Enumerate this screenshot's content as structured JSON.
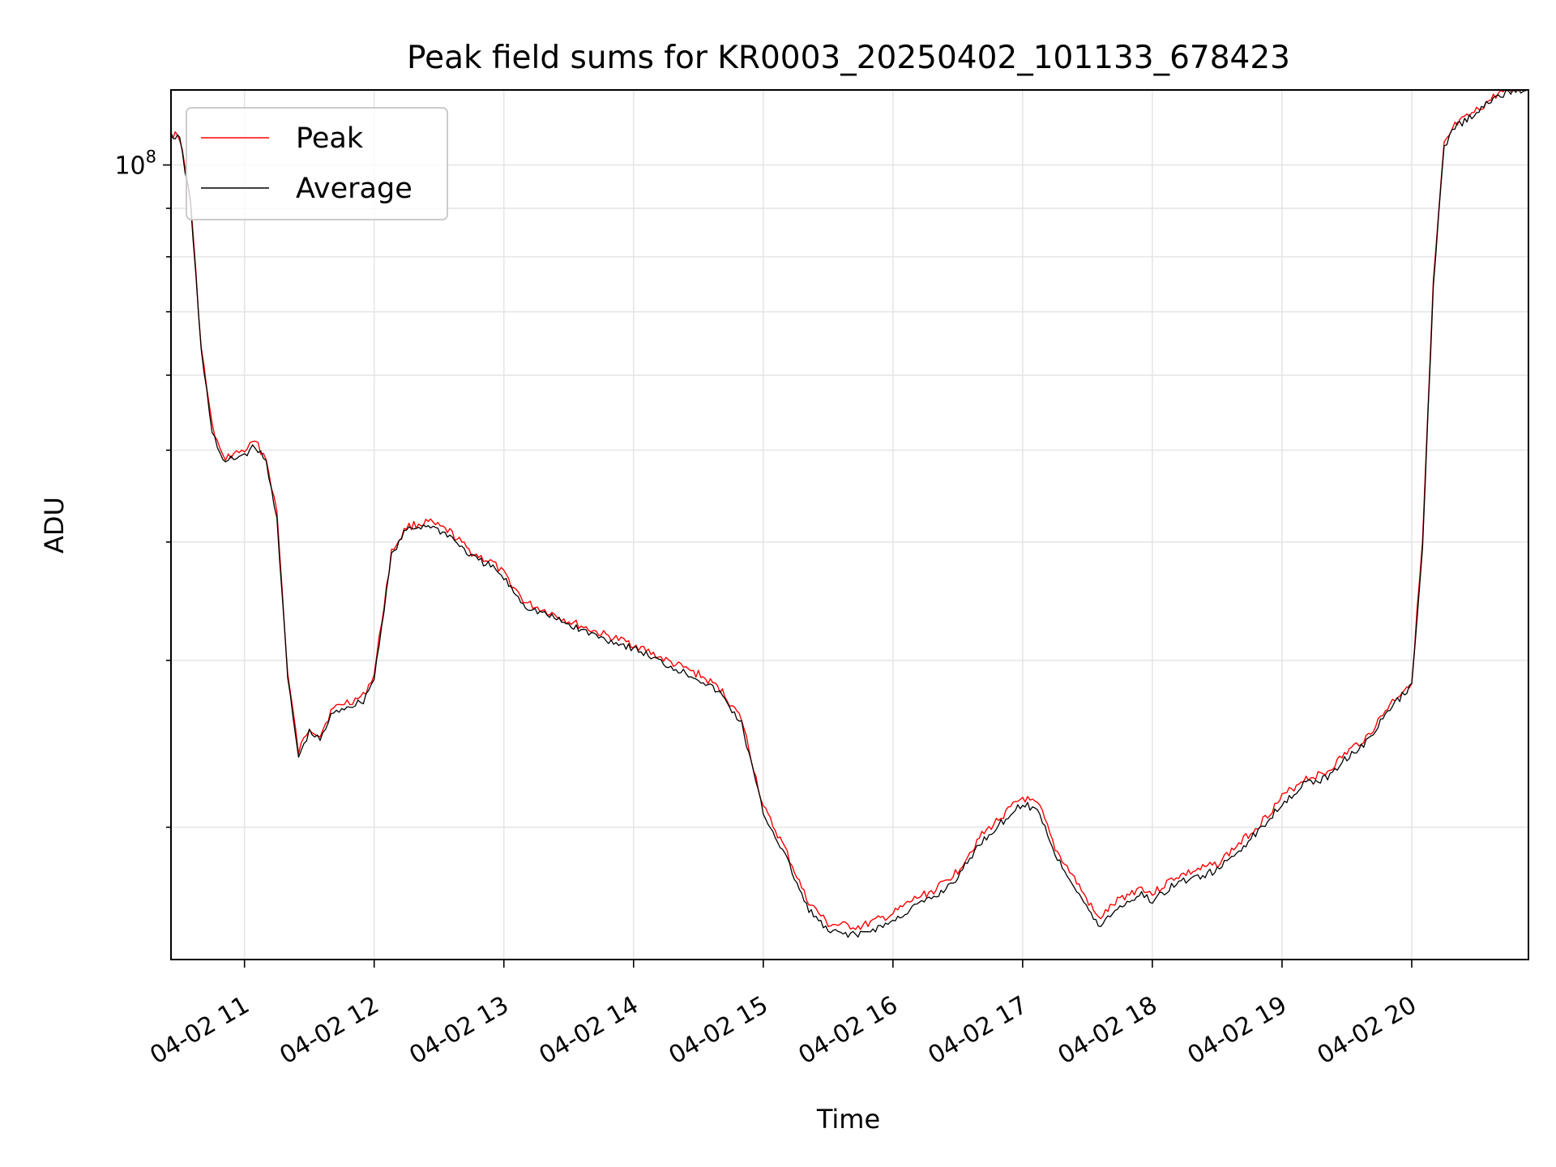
{
  "chart_data": {
    "type": "line",
    "title": "Peak field sums for KR0003_20250402_101133_678423",
    "xlabel": "Time",
    "ylabel": "ADU",
    "yscale": "log",
    "grid": true,
    "legend_position": "upper-left",
    "xlim": [
      "2025-04-02T10:26",
      "2025-04-02T20:54"
    ],
    "ylim": [
      14500000,
      120000000
    ],
    "x_ticks": [
      {
        "t": "2025-04-02T11:00",
        "label": "04-02 11"
      },
      {
        "t": "2025-04-02T12:00",
        "label": "04-02 12"
      },
      {
        "t": "2025-04-02T13:00",
        "label": "04-02 13"
      },
      {
        "t": "2025-04-02T14:00",
        "label": "04-02 14"
      },
      {
        "t": "2025-04-02T15:00",
        "label": "04-02 15"
      },
      {
        "t": "2025-04-02T16:00",
        "label": "04-02 16"
      },
      {
        "t": "2025-04-02T17:00",
        "label": "04-02 17"
      },
      {
        "t": "2025-04-02T18:00",
        "label": "04-02 18"
      },
      {
        "t": "2025-04-02T19:00",
        "label": "04-02 19"
      },
      {
        "t": "2025-04-02T20:00",
        "label": "04-02 20"
      }
    ],
    "y_major_tick": {
      "value": 100000000,
      "label_base": "10",
      "label_exp": "8"
    },
    "y_minor_ticks": [
      20000000,
      30000000,
      40000000,
      50000000,
      60000000,
      70000000,
      80000000,
      90000000
    ],
    "series": [
      {
        "name": "Peak",
        "color": "#ff0000",
        "x": [
          "2025-04-02T10:26",
          "2025-04-02T10:30",
          "2025-04-02T10:35",
          "2025-04-02T10:40",
          "2025-04-02T10:45",
          "2025-04-02T10:50",
          "2025-04-02T10:55",
          "2025-04-02T11:00",
          "2025-04-02T11:05",
          "2025-04-02T11:10",
          "2025-04-02T11:15",
          "2025-04-02T11:20",
          "2025-04-02T11:25",
          "2025-04-02T11:30",
          "2025-04-02T11:35",
          "2025-04-02T11:40",
          "2025-04-02T11:45",
          "2025-04-02T11:50",
          "2025-04-02T11:55",
          "2025-04-02T12:00",
          "2025-04-02T12:08",
          "2025-04-02T12:15",
          "2025-04-02T12:25",
          "2025-04-02T12:35",
          "2025-04-02T12:45",
          "2025-04-02T12:55",
          "2025-04-02T13:00",
          "2025-04-02T13:10",
          "2025-04-02T13:20",
          "2025-04-02T13:30",
          "2025-04-02T13:45",
          "2025-04-02T14:00",
          "2025-04-02T14:15",
          "2025-04-02T14:30",
          "2025-04-02T14:40",
          "2025-04-02T14:50",
          "2025-04-02T15:00",
          "2025-04-02T15:10",
          "2025-04-02T15:20",
          "2025-04-02T15:30",
          "2025-04-02T15:45",
          "2025-04-02T16:00",
          "2025-04-02T16:10",
          "2025-04-02T16:20",
          "2025-04-02T16:30",
          "2025-04-02T16:40",
          "2025-04-02T16:50",
          "2025-04-02T17:00",
          "2025-04-02T17:08",
          "2025-04-02T17:15",
          "2025-04-02T17:25",
          "2025-04-02T17:35",
          "2025-04-02T17:45",
          "2025-04-02T17:55",
          "2025-04-02T18:00",
          "2025-04-02T18:10",
          "2025-04-02T18:20",
          "2025-04-02T18:30",
          "2025-04-02T18:40",
          "2025-04-02T18:50",
          "2025-04-02T19:00",
          "2025-04-02T19:10",
          "2025-04-02T19:20",
          "2025-04-02T19:30",
          "2025-04-02T19:40",
          "2025-04-02T19:50",
          "2025-04-02T20:00",
          "2025-04-02T20:05",
          "2025-04-02T20:10",
          "2025-04-02T20:15",
          "2025-04-02T20:20",
          "2025-04-02T20:30",
          "2025-04-02T20:40",
          "2025-04-02T20:54"
        ],
        "values": [
          108000000,
          107000000,
          92000000,
          64000000,
          53000000,
          49000000,
          49500000,
          50000000,
          51000000,
          49000000,
          43000000,
          29000000,
          24000000,
          25500000,
          25000000,
          26500000,
          27000000,
          27200000,
          27500000,
          29000000,
          39000000,
          41500000,
          42000000,
          41000000,
          39000000,
          38000000,
          37000000,
          34500000,
          33800000,
          33000000,
          32000000,
          31200000,
          30000000,
          29000000,
          28000000,
          26000000,
          21000000,
          19000000,
          16800000,
          15800000,
          15700000,
          16200000,
          16800000,
          17200000,
          18000000,
          19500000,
          20500000,
          21500000,
          21000000,
          19000000,
          17500000,
          16000000,
          16800000,
          17300000,
          17000000,
          17700000,
          18000000,
          18300000,
          19200000,
          20200000,
          21500000,
          22500000,
          22800000,
          24000000,
          25000000,
          27000000,
          28500000,
          40000000,
          75000000,
          105000000,
          110000000,
          114000000,
          119000000,
          121000000
        ]
      },
      {
        "name": "Average",
        "color": "#000000",
        "x": [
          "2025-04-02T10:26",
          "2025-04-02T10:30",
          "2025-04-02T10:35",
          "2025-04-02T10:40",
          "2025-04-02T10:45",
          "2025-04-02T10:50",
          "2025-04-02T10:55",
          "2025-04-02T11:00",
          "2025-04-02T11:05",
          "2025-04-02T11:10",
          "2025-04-02T11:15",
          "2025-04-02T11:20",
          "2025-04-02T11:25",
          "2025-04-02T11:30",
          "2025-04-02T11:35",
          "2025-04-02T11:40",
          "2025-04-02T11:45",
          "2025-04-02T11:50",
          "2025-04-02T11:55",
          "2025-04-02T12:00",
          "2025-04-02T12:08",
          "2025-04-02T12:15",
          "2025-04-02T12:25",
          "2025-04-02T12:35",
          "2025-04-02T12:45",
          "2025-04-02T12:55",
          "2025-04-02T13:00",
          "2025-04-02T13:10",
          "2025-04-02T13:20",
          "2025-04-02T13:30",
          "2025-04-02T13:45",
          "2025-04-02T14:00",
          "2025-04-02T14:15",
          "2025-04-02T14:30",
          "2025-04-02T14:40",
          "2025-04-02T14:50",
          "2025-04-02T15:00",
          "2025-04-02T15:10",
          "2025-04-02T15:20",
          "2025-04-02T15:30",
          "2025-04-02T15:45",
          "2025-04-02T16:00",
          "2025-04-02T16:10",
          "2025-04-02T16:20",
          "2025-04-02T16:30",
          "2025-04-02T16:40",
          "2025-04-02T16:50",
          "2025-04-02T17:00",
          "2025-04-02T17:08",
          "2025-04-02T17:15",
          "2025-04-02T17:25",
          "2025-04-02T17:35",
          "2025-04-02T17:45",
          "2025-04-02T17:55",
          "2025-04-02T18:00",
          "2025-04-02T18:10",
          "2025-04-02T18:20",
          "2025-04-02T18:30",
          "2025-04-02T18:40",
          "2025-04-02T18:50",
          "2025-04-02T19:00",
          "2025-04-02T19:10",
          "2025-04-02T19:20",
          "2025-04-02T19:30",
          "2025-04-02T19:40",
          "2025-04-02T19:50",
          "2025-04-02T20:00",
          "2025-04-02T20:05",
          "2025-04-02T20:10",
          "2025-04-02T20:15",
          "2025-04-02T20:20",
          "2025-04-02T20:30",
          "2025-04-02T20:40",
          "2025-04-02T20:54"
        ],
        "values": [
          107500000,
          106500000,
          91500000,
          63500000,
          52500000,
          48500000,
          49000000,
          49500000,
          50500000,
          48500000,
          42500000,
          28700000,
          23700000,
          25200000,
          24700000,
          26200000,
          26700000,
          26900000,
          27200000,
          28700000,
          38700000,
          41200000,
          41700000,
          40600000,
          38600000,
          37600000,
          36600000,
          34200000,
          33500000,
          32700000,
          31700000,
          30900000,
          29700000,
          28700000,
          27700000,
          25700000,
          20700000,
          18700000,
          16500000,
          15500000,
          15400000,
          15900000,
          16500000,
          16900000,
          17700000,
          19200000,
          20200000,
          21200000,
          20700000,
          18700000,
          17200000,
          15700000,
          16500000,
          17000000,
          16700000,
          17400000,
          17700000,
          18000000,
          18900000,
          19900000,
          21200000,
          22200000,
          22500000,
          23700000,
          24700000,
          26700000,
          28200000,
          39700000,
          74500000,
          104500000,
          109500000,
          113500000,
          118500000,
          120500000
        ]
      }
    ]
  }
}
